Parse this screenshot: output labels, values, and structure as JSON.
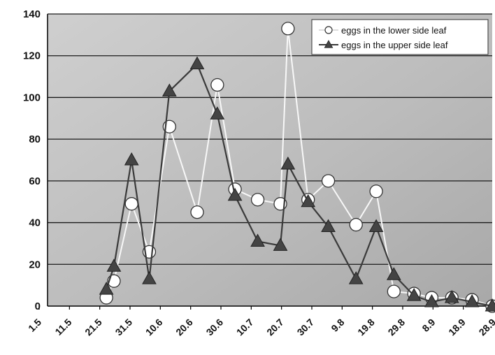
{
  "chart_data": {
    "type": "line",
    "title": "",
    "xlabel": "",
    "ylabel": "",
    "ylim": [
      0,
      140
    ],
    "yticks": [
      0,
      20,
      40,
      60,
      80,
      100,
      120,
      140
    ],
    "grid": true,
    "legend_position": "top-right",
    "x_ticks": [
      "1.5",
      "11.5",
      "21.5",
      "31.5",
      "10.6",
      "20.6",
      "30.6",
      "10.7",
      "20.7",
      "30.7",
      "9.8",
      "19.8",
      "29.8",
      "8.9",
      "18.9",
      "28.9"
    ],
    "series": [
      {
        "name": "eggs in the lower side leaf",
        "marker": "circle",
        "color": "#f5f5f5",
        "points": [
          {
            "x": 20,
            "y": 4
          },
          {
            "x": 23,
            "y": 12
          },
          {
            "x": 30,
            "y": 49
          },
          {
            "x": 37,
            "y": 26
          },
          {
            "x": 45,
            "y": 86
          },
          {
            "x": 56,
            "y": 45
          },
          {
            "x": 64,
            "y": 106
          },
          {
            "x": 71,
            "y": 56
          },
          {
            "x": 80,
            "y": 51
          },
          {
            "x": 89,
            "y": 49
          },
          {
            "x": 92,
            "y": 133
          },
          {
            "x": 100,
            "y": 51
          },
          {
            "x": 108,
            "y": 60
          },
          {
            "x": 119,
            "y": 39
          },
          {
            "x": 127,
            "y": 55
          },
          {
            "x": 134,
            "y": 7
          },
          {
            "x": 142,
            "y": 6
          },
          {
            "x": 149,
            "y": 4
          },
          {
            "x": 157,
            "y": 4
          },
          {
            "x": 165,
            "y": 3
          },
          {
            "x": 173,
            "y": 0
          }
        ]
      },
      {
        "name": "eggs in the upper side leaf",
        "marker": "triangle",
        "color": "#3a3a3a",
        "points": [
          {
            "x": 20,
            "y": 8
          },
          {
            "x": 23,
            "y": 19
          },
          {
            "x": 30,
            "y": 70
          },
          {
            "x": 37,
            "y": 13
          },
          {
            "x": 45,
            "y": 103
          },
          {
            "x": 56,
            "y": 116
          },
          {
            "x": 64,
            "y": 92
          },
          {
            "x": 71,
            "y": 53
          },
          {
            "x": 80,
            "y": 31
          },
          {
            "x": 89,
            "y": 29
          },
          {
            "x": 92,
            "y": 68
          },
          {
            "x": 100,
            "y": 50
          },
          {
            "x": 108,
            "y": 38
          },
          {
            "x": 119,
            "y": 13
          },
          {
            "x": 127,
            "y": 38
          },
          {
            "x": 134,
            "y": 15
          },
          {
            "x": 142,
            "y": 5
          },
          {
            "x": 149,
            "y": 2
          },
          {
            "x": 157,
            "y": 4
          },
          {
            "x": 165,
            "y": 2
          },
          {
            "x": 173,
            "y": 0
          }
        ]
      }
    ]
  }
}
